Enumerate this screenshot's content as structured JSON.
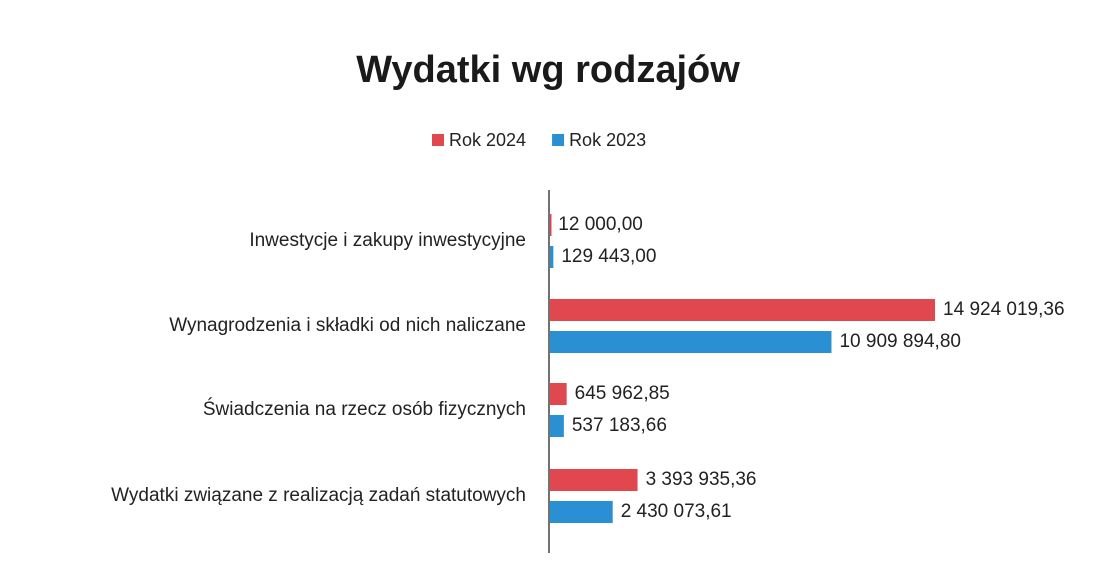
{
  "chart_data": {
    "type": "bar",
    "orientation": "horizontal",
    "title": "Wydatki wg rodzajów",
    "categories": [
      "Inwestycje i zakupy inwestycyjne",
      "Wynagrodzenia i składki od nich naliczane",
      "Świadczenia na rzecz osób fizycznych",
      "Wydatki związane z realizacją zadań statutowych"
    ],
    "series": [
      {
        "name": "Rok 2024",
        "color": "#e0474f",
        "values": [
          12000,
          14924019.36,
          645962.85,
          3393935.36
        ],
        "value_labels": [
          "12 000,00",
          "14 924 019,36",
          "645 962,85",
          "3 393 935,36"
        ]
      },
      {
        "name": "Rok 2023",
        "color": "#2b8fd3",
        "values": [
          129443,
          10909894.8,
          537183.66,
          2430073.61
        ],
        "value_labels": [
          "129 443,00",
          "10 909 894,80",
          "537 183,66",
          "2 430 073,61"
        ]
      }
    ],
    "xlim": [
      0,
      15000000
    ],
    "legend": "top",
    "grid": false
  }
}
